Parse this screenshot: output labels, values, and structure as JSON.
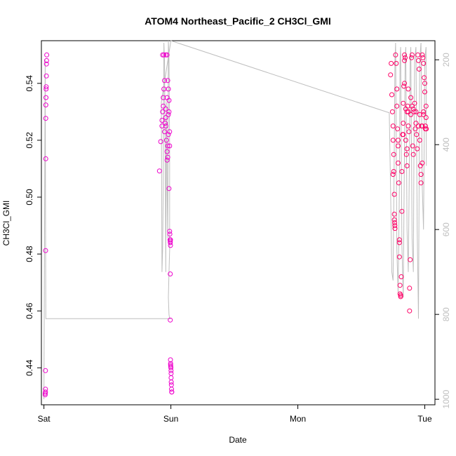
{
  "chart_data": {
    "type": "scatter",
    "title": "ATOM4 Northeast_Pacific_2 CH3Cl_GMI",
    "xlabel": "Date",
    "ylabel": "CH3Cl_GMI",
    "x_ticks": [
      {
        "day": 0,
        "label": "Sat"
      },
      {
        "day": 1,
        "label": "Sun"
      },
      {
        "day": 2,
        "label": "Mon"
      },
      {
        "day": 3,
        "label": "Tue"
      }
    ],
    "y_ticks": [
      0.44,
      0.46,
      0.48,
      0.5,
      0.52,
      0.54
    ],
    "y_tick_labels": [
      "0.44",
      "0.46",
      "0.48",
      "0.50",
      "0.52",
      "0.54"
    ],
    "ylim": [
      0.427,
      0.555
    ],
    "xlim_days": [
      -0.02,
      3.08
    ],
    "right_axis": {
      "label": "",
      "ticks": [
        200,
        400,
        600,
        800,
        1000
      ],
      "tick_labels": [
        "200",
        "400",
        "600",
        "800",
        "1000"
      ],
      "ylim": [
        1013,
        155
      ],
      "reversed": true
    },
    "colors": {
      "point_early": "#ee00cc",
      "point_late": "#ff0066",
      "pressure_line": "#bebebe",
      "axis": "#000000"
    },
    "series": [
      {
        "kind": "points",
        "values": [
          [
            0.01,
            0.4305
          ],
          [
            0.01,
            0.431
          ],
          [
            0.012,
            0.4315
          ],
          [
            0.012,
            0.4325
          ],
          [
            0.012,
            0.439
          ],
          [
            0.013,
            0.4812
          ],
          [
            0.014,
            0.5135
          ],
          [
            0.014,
            0.5277
          ],
          [
            0.015,
            0.5324
          ],
          [
            0.016,
            0.535
          ],
          [
            0.017,
            0.538
          ],
          [
            0.018,
            0.5388
          ],
          [
            0.019,
            0.5426
          ],
          [
            0.02,
            0.5468
          ],
          [
            0.021,
            0.548
          ],
          [
            0.022,
            0.55
          ],
          [
            0.91,
            0.5092
          ],
          [
            0.92,
            0.5195
          ],
          [
            0.93,
            0.525
          ],
          [
            0.93,
            0.527
          ],
          [
            0.935,
            0.53
          ],
          [
            0.94,
            0.532
          ],
          [
            0.94,
            0.535
          ],
          [
            0.945,
            0.538
          ],
          [
            0.95,
            0.541
          ],
          [
            0.935,
            0.55
          ],
          [
            0.945,
            0.55
          ],
          [
            0.96,
            0.55
          ],
          [
            0.97,
            0.55
          ],
          [
            0.95,
            0.523
          ],
          [
            0.96,
            0.525
          ],
          [
            0.96,
            0.528
          ],
          [
            0.965,
            0.52
          ],
          [
            0.97,
            0.516
          ],
          [
            0.97,
            0.513
          ],
          [
            0.975,
            0.514
          ],
          [
            0.975,
            0.518
          ],
          [
            0.98,
            0.522
          ],
          [
            0.98,
            0.529
          ],
          [
            0.985,
            0.53
          ],
          [
            0.985,
            0.534
          ],
          [
            0.98,
            0.538
          ],
          [
            0.975,
            0.541
          ],
          [
            0.97,
            0.535
          ],
          [
            0.96,
            0.531
          ],
          [
            0.955,
            0.526
          ],
          [
            0.99,
            0.518
          ],
          [
            0.99,
            0.523
          ],
          [
            0.985,
            0.503
          ],
          [
            0.99,
            0.488
          ],
          [
            0.992,
            0.487
          ],
          [
            0.993,
            0.485
          ],
          [
            0.995,
            0.4845
          ],
          [
            0.995,
            0.484
          ],
          [
            0.997,
            0.483
          ],
          [
            0.997,
            0.485
          ],
          [
            0.995,
            0.473
          ],
          [
            0.995,
            0.4568
          ],
          [
            0.997,
            0.4428
          ],
          [
            0.998,
            0.4415
          ],
          [
            0.998,
            0.441
          ],
          [
            0.999,
            0.4405
          ],
          [
            1.0,
            0.44
          ],
          [
            1.001,
            0.439
          ],
          [
            1.002,
            0.438
          ],
          [
            1.002,
            0.4365
          ],
          [
            1.003,
            0.435
          ],
          [
            1.004,
            0.434
          ],
          [
            1.005,
            0.4325
          ],
          [
            1.006,
            0.4315
          ],
          [
            1.007,
            0.4315
          ]
        ]
      },
      {
        "kind": "points",
        "values": [
          [
            2.73,
            0.543
          ],
          [
            2.735,
            0.547
          ],
          [
            2.74,
            0.536
          ],
          [
            2.745,
            0.53
          ],
          [
            2.75,
            0.525
          ],
          [
            2.75,
            0.52
          ],
          [
            2.755,
            0.515
          ],
          [
            2.75,
            0.508
          ],
          [
            2.755,
            0.509
          ],
          [
            2.76,
            0.501
          ],
          [
            2.76,
            0.494
          ],
          [
            2.76,
            0.492
          ],
          [
            2.762,
            0.491
          ],
          [
            2.764,
            0.49
          ],
          [
            2.765,
            0.489
          ],
          [
            2.77,
            0.55
          ],
          [
            2.775,
            0.547
          ],
          [
            2.78,
            0.538
          ],
          [
            2.78,
            0.532
          ],
          [
            2.785,
            0.524
          ],
          [
            2.79,
            0.52
          ],
          [
            2.79,
            0.518
          ],
          [
            2.79,
            0.512
          ],
          [
            2.795,
            0.505
          ],
          [
            2.8,
            0.485
          ],
          [
            2.8,
            0.484
          ],
          [
            2.8,
            0.479
          ],
          [
            2.805,
            0.469
          ],
          [
            2.805,
            0.466
          ],
          [
            2.81,
            0.4655
          ],
          [
            2.81,
            0.465
          ],
          [
            2.815,
            0.472
          ],
          [
            2.82,
            0.495
          ],
          [
            2.82,
            0.509
          ],
          [
            2.825,
            0.522
          ],
          [
            2.83,
            0.526
          ],
          [
            2.83,
            0.533
          ],
          [
            2.835,
            0.539
          ],
          [
            2.84,
            0.548
          ],
          [
            2.84,
            0.55
          ],
          [
            2.845,
            0.549
          ],
          [
            2.85,
            0.531
          ],
          [
            2.85,
            0.52
          ],
          [
            2.855,
            0.515
          ],
          [
            2.86,
            0.511
          ],
          [
            2.86,
            0.53
          ],
          [
            2.865,
            0.532
          ],
          [
            2.87,
            0.538
          ],
          [
            2.87,
            0.525
          ],
          [
            2.875,
            0.523
          ],
          [
            2.88,
            0.468
          ],
          [
            2.88,
            0.46
          ],
          [
            2.885,
            0.478
          ],
          [
            2.89,
            0.529
          ],
          [
            2.89,
            0.535
          ],
          [
            2.895,
            0.549
          ],
          [
            2.9,
            0.55
          ],
          [
            2.905,
            0.518
          ],
          [
            2.91,
            0.515
          ],
          [
            2.915,
            0.53
          ],
          [
            2.92,
            0.533
          ],
          [
            2.925,
            0.524
          ],
          [
            2.93,
            0.526
          ],
          [
            2.935,
            0.522
          ],
          [
            2.94,
            0.517
          ],
          [
            2.945,
            0.55
          ],
          [
            2.95,
            0.548
          ],
          [
            2.955,
            0.545
          ],
          [
            2.96,
            0.529
          ],
          [
            2.96,
            0.52
          ],
          [
            2.965,
            0.511
          ],
          [
            2.97,
            0.508
          ],
          [
            2.97,
            0.505
          ],
          [
            2.975,
            0.525
          ],
          [
            2.98,
            0.525
          ],
          [
            2.98,
            0.55
          ],
          [
            2.985,
            0.549
          ],
          [
            2.99,
            0.547
          ],
          [
            2.995,
            0.542
          ],
          [
            3.0,
            0.54
          ],
          [
            3.0,
            0.537
          ],
          [
            3.005,
            0.525
          ],
          [
            3.005,
            0.524
          ],
          [
            3.01,
            0.532
          ],
          [
            3.01,
            0.528
          ],
          [
            3.012,
            0.524
          ],
          [
            2.87,
            0.53
          ],
          [
            2.9,
            0.532
          ],
          [
            2.91,
            0.531
          ],
          [
            2.93,
            0.53
          ],
          [
            2.95,
            0.525
          ],
          [
            2.99,
            0.53
          ],
          [
            2.99,
            0.529
          ],
          [
            2.98,
            0.512
          ],
          [
            2.86,
            0.517
          ],
          [
            2.83,
            0.522
          ],
          [
            2.84,
            0.54
          ]
        ]
      },
      {
        "kind": "pressure",
        "values": [
          [
            0.0,
            1000
          ],
          [
            0.01,
            200
          ],
          [
            0.013,
            650
          ],
          [
            0.015,
            810
          ],
          [
            0.018,
            810
          ],
          [
            1.0,
            810
          ],
          [
            0.99,
            810
          ],
          [
            0.985,
            800
          ],
          [
            0.98,
            760
          ],
          [
            0.985,
            700
          ],
          [
            0.99,
            650
          ],
          [
            0.99,
            400
          ],
          [
            0.985,
            200
          ],
          [
            0.98,
            155
          ],
          [
            0.975,
            620
          ],
          [
            0.97,
            500
          ],
          [
            0.965,
            300
          ],
          [
            0.96,
            700
          ],
          [
            0.955,
            400
          ],
          [
            0.95,
            200
          ],
          [
            0.945,
            160
          ],
          [
            0.94,
            500
          ],
          [
            0.935,
            650
          ],
          [
            0.93,
            700
          ],
          [
            0.925,
            300
          ],
          [
            1.0,
            155
          ],
          [
            2.72,
            325
          ],
          [
            2.73,
            500
          ],
          [
            2.74,
            700
          ],
          [
            2.75,
            720
          ],
          [
            2.76,
            400
          ],
          [
            2.765,
            200
          ],
          [
            2.77,
            160
          ],
          [
            2.78,
            650
          ],
          [
            2.79,
            750
          ],
          [
            2.8,
            500
          ],
          [
            2.805,
            200
          ],
          [
            2.81,
            170
          ],
          [
            2.82,
            640
          ],
          [
            2.83,
            760
          ],
          [
            2.84,
            400
          ],
          [
            2.845,
            200
          ],
          [
            2.85,
            170
          ],
          [
            2.86,
            600
          ],
          [
            2.87,
            700
          ],
          [
            2.88,
            400
          ],
          [
            2.885,
            200
          ],
          [
            2.89,
            170
          ],
          [
            2.9,
            620
          ],
          [
            2.91,
            700
          ],
          [
            2.915,
            400
          ],
          [
            2.92,
            200
          ],
          [
            2.93,
            170
          ],
          [
            2.94,
            600
          ],
          [
            2.95,
            810
          ],
          [
            2.955,
            500
          ],
          [
            2.96,
            200
          ],
          [
            2.97,
            160
          ],
          [
            2.98,
            500
          ],
          [
            2.99,
            600
          ],
          [
            3.0,
            200
          ],
          [
            3.01,
            170
          ],
          [
            3.012,
            450
          ]
        ]
      }
    ],
    "legend": "none",
    "grid": false
  }
}
